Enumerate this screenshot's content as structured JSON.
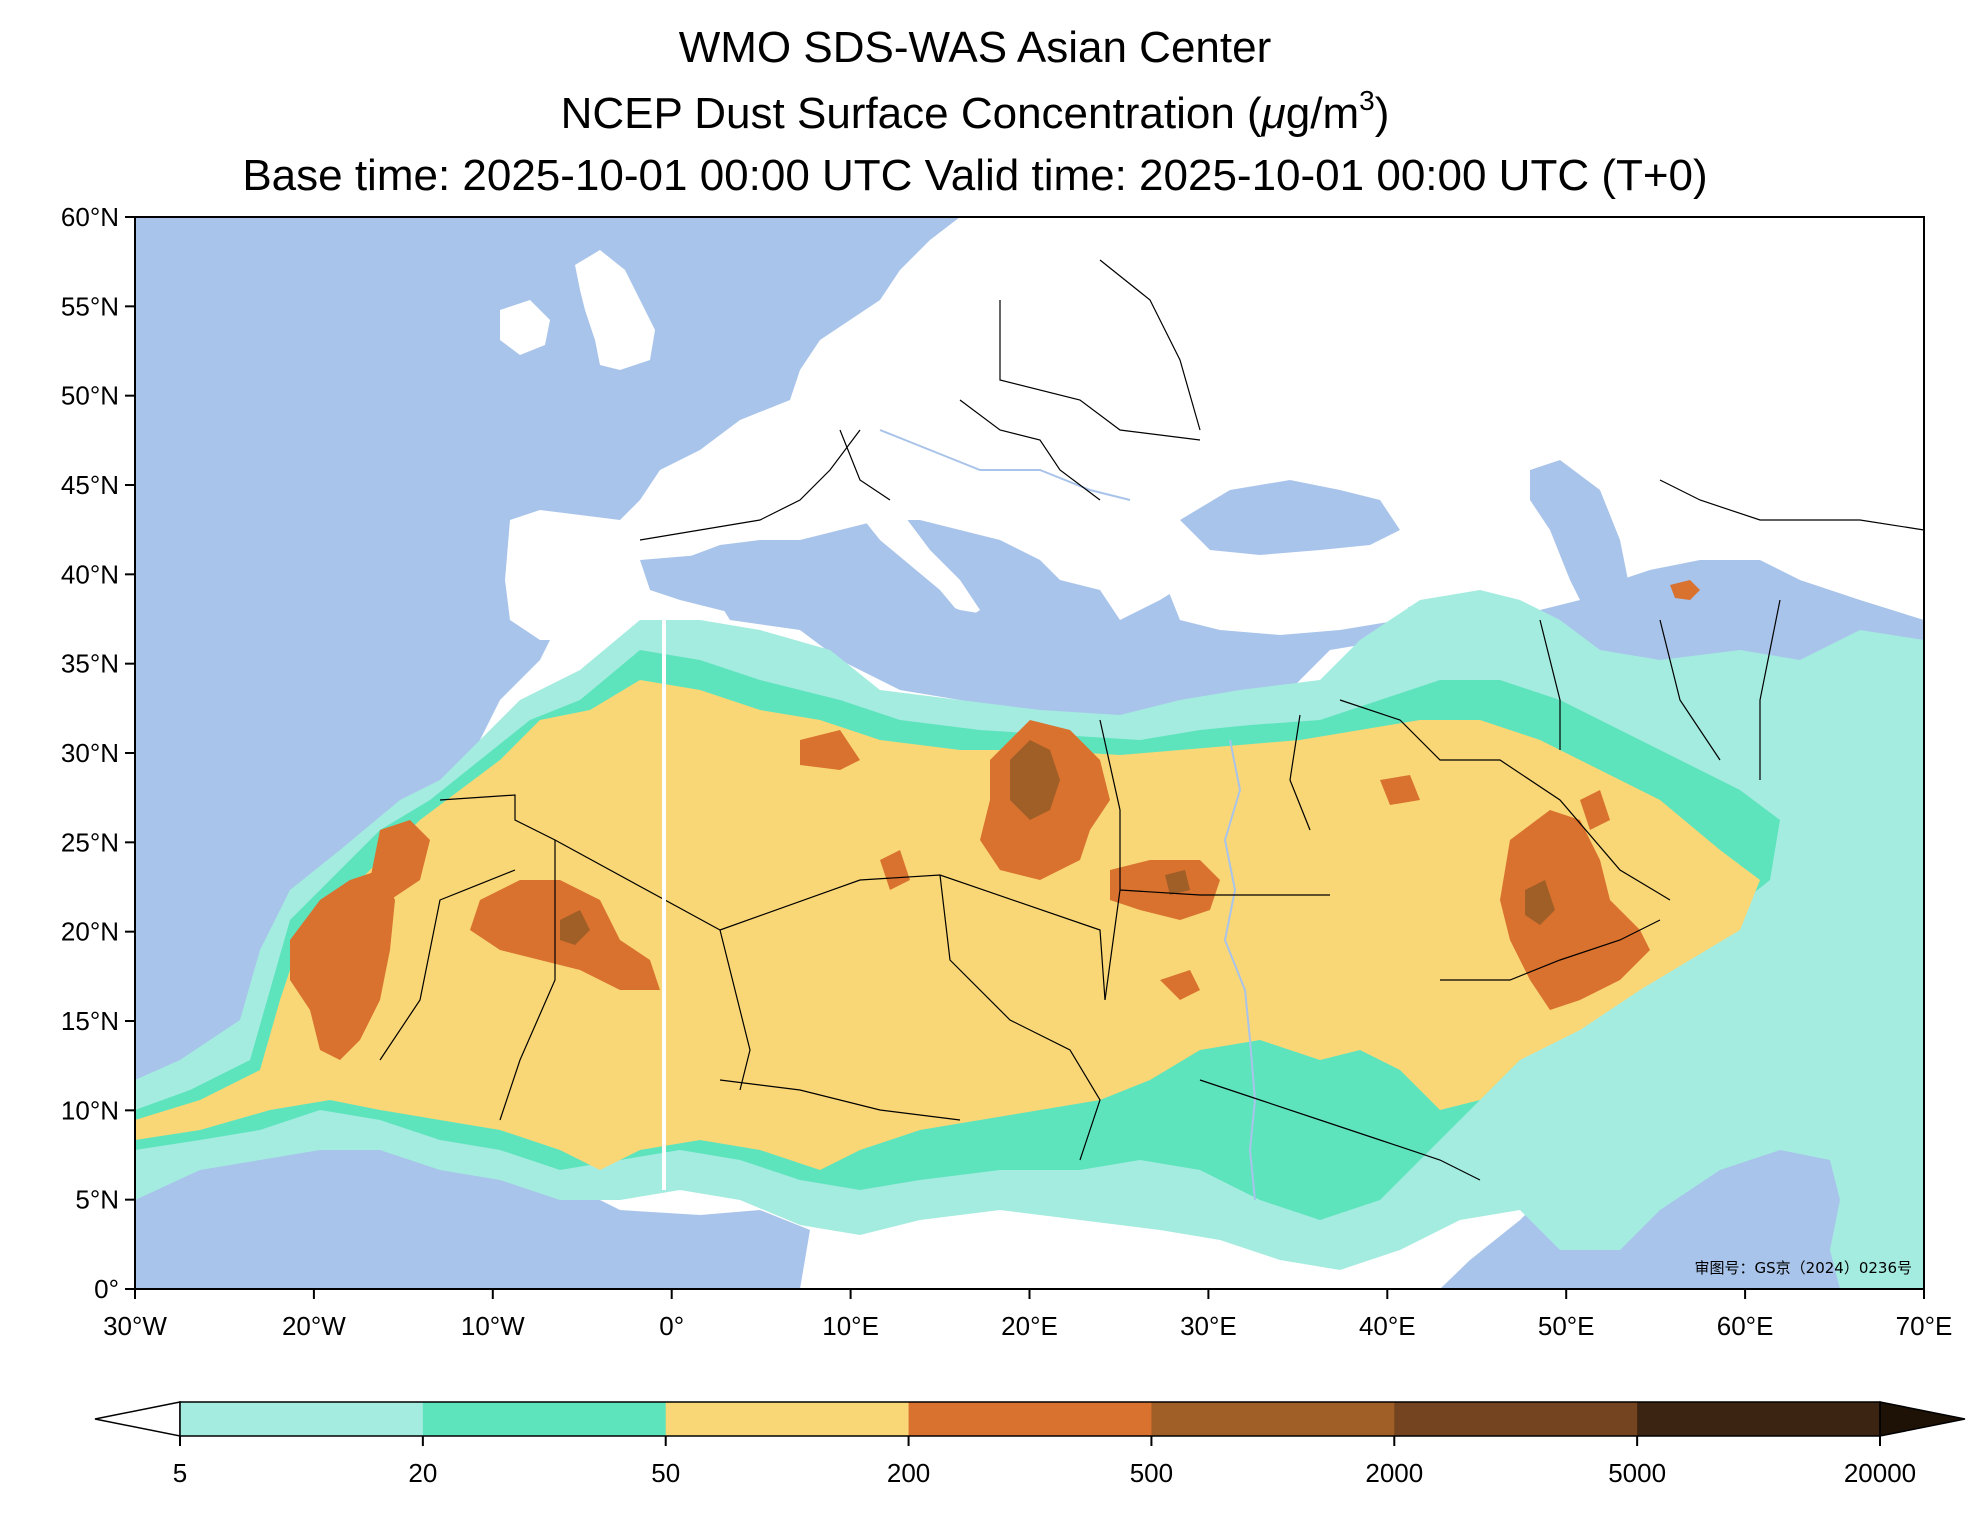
{
  "header": {
    "title_line1": "WMO SDS-WAS Asian Center",
    "title_line2_prefix": "NCEP Dust Surface Concentration (",
    "title_line2_unit_mu": "μ",
    "title_line2_unit_rest": "g/m",
    "title_line2_sup": "3",
    "title_line2_suffix": ")",
    "title_line3": "Base time: 2025-10-01 00:00 UTC Valid time: 2025-10-01 00:00 UTC (T+0)"
  },
  "map": {
    "lon_range": [
      -30,
      70
    ],
    "lat_range": [
      0,
      60
    ],
    "lon_labels": [
      {
        "lon": -30,
        "label": "30°W"
      },
      {
        "lon": -20,
        "label": "20°W"
      },
      {
        "lon": -10,
        "label": "10°W"
      },
      {
        "lon": 0,
        "label": "0°"
      },
      {
        "lon": 10,
        "label": "10°E"
      },
      {
        "lon": 20,
        "label": "20°E"
      },
      {
        "lon": 30,
        "label": "30°E"
      },
      {
        "lon": 40,
        "label": "40°E"
      },
      {
        "lon": 50,
        "label": "50°E"
      },
      {
        "lon": 60,
        "label": "60°E"
      },
      {
        "lon": 70,
        "label": "70°E"
      }
    ],
    "lat_labels": [
      {
        "lat": 60,
        "label": "60°N"
      },
      {
        "lat": 55,
        "label": "55°N"
      },
      {
        "lat": 50,
        "label": "50°N"
      },
      {
        "lat": 45,
        "label": "45°N"
      },
      {
        "lat": 40,
        "label": "40°N"
      },
      {
        "lat": 35,
        "label": "35°N"
      },
      {
        "lat": 30,
        "label": "30°N"
      },
      {
        "lat": 25,
        "label": "25°N"
      },
      {
        "lat": 20,
        "label": "20°N"
      },
      {
        "lat": 15,
        "label": "15°N"
      },
      {
        "lat": 10,
        "label": "10°N"
      },
      {
        "lat": 5,
        "label": "5°N"
      },
      {
        "lat": 0,
        "label": "0°"
      }
    ],
    "approval_number": "审图号：GS京（2024）0236号",
    "colors": {
      "ocean": "#a9c4ea",
      "land": "#ffffff",
      "river": "#a9c4ea",
      "border": "#000000"
    }
  },
  "colorbar": {
    "ticks": [
      "5",
      "20",
      "50",
      "200",
      "500",
      "2000",
      "5000",
      "20000"
    ],
    "colors": [
      "#a4ece0",
      "#5ee4bd",
      "#fad776",
      "#d9712f",
      "#a05f27",
      "#744420",
      "#3b2411"
    ],
    "extend_max_color": "#1e1207",
    "extend_min_color": "#ffffff"
  }
}
